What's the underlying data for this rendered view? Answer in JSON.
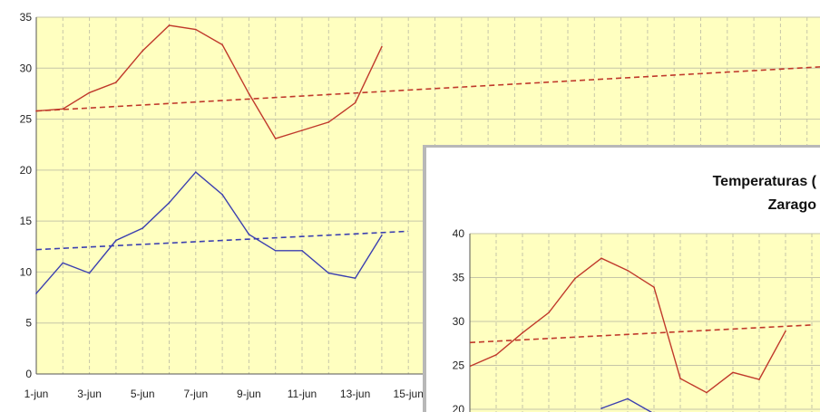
{
  "chart_data": [
    {
      "type": "line",
      "title": "",
      "xlabel": "",
      "ylabel": "",
      "x_tick_labels": [
        "1-jun",
        "3-jun",
        "5-jun",
        "7-jun",
        "9-jun",
        "11-jun",
        "13-jun",
        "15-jun"
      ],
      "y_tick_labels": [
        "0",
        "5",
        "10",
        "15",
        "20",
        "25",
        "30",
        "35"
      ],
      "ylim": [
        0,
        35
      ],
      "grid": true,
      "background": "#ffffc0",
      "x": [
        1,
        2,
        3,
        4,
        5,
        6,
        7,
        8,
        9,
        10,
        11,
        12,
        13,
        14
      ],
      "series": [
        {
          "color": "#c0392b",
          "style": "solid",
          "values": [
            25.8,
            26.0,
            27.6,
            28.6,
            31.7,
            34.2,
            33.8,
            32.3,
            27.5,
            23.1,
            23.9,
            24.7,
            26.6,
            32.1
          ]
        },
        {
          "color": "#3b3fb0",
          "style": "solid",
          "values": [
            7.9,
            10.9,
            9.9,
            13.1,
            14.3,
            16.8,
            19.8,
            17.6,
            13.7,
            12.1,
            12.1,
            9.9,
            9.4,
            13.6
          ]
        },
        {
          "color": "#c0392b",
          "style": "dashed",
          "trend_from": [
            1,
            25.8
          ],
          "trend_to": [
            31,
            30.2
          ]
        },
        {
          "color": "#3b3fb0",
          "style": "dashed",
          "trend_from": [
            1,
            12.2
          ],
          "trend_to": [
            15,
            14.0
          ]
        }
      ]
    },
    {
      "type": "line",
      "title_lines": [
        "Temperaturas (",
        "Zarago"
      ],
      "y_tick_labels": [
        "20",
        "25",
        "30",
        "35",
        "40"
      ],
      "ylim": [
        20,
        40
      ],
      "grid": true,
      "background": "#ffffc0",
      "x": [
        1,
        2,
        3,
        4,
        5,
        6,
        7,
        8,
        9,
        10,
        11,
        12,
        13
      ],
      "series": [
        {
          "color": "#c0392b",
          "style": "solid",
          "values": [
            24.9,
            26.2,
            28.7,
            31.0,
            34.9,
            37.2,
            35.8,
            33.9,
            23.5,
            21.9,
            24.2,
            23.4,
            28.9
          ]
        },
        {
          "color": "#3b3fb0",
          "style": "solid",
          "values": [
            null,
            null,
            null,
            null,
            null,
            20.1,
            21.2,
            19.5,
            null,
            null,
            null,
            null,
            null
          ]
        },
        {
          "color": "#c0392b",
          "style": "dashed",
          "trend_from": [
            1,
            27.6
          ],
          "trend_to": [
            14,
            29.6
          ]
        }
      ]
    }
  ]
}
